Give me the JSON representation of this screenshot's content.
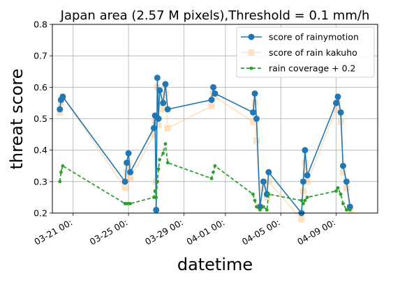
{
  "chart_data": {
    "type": "line",
    "title": "Japan area (2.57 M pixels),Threshold = 0.1 mm/h",
    "xlabel": "datetime",
    "ylabel": "threat score",
    "ylim": [
      0.2,
      0.8
    ],
    "yticks": [
      "0.2",
      "0.3",
      "0.4",
      "0.5",
      "0.6",
      "0.7",
      "0.8"
    ],
    "xlim": [
      "2020-03-19T12:00",
      "2020-04-12T00:00"
    ],
    "xticks": [
      {
        "date": "2020-03-21",
        "label": "03-21 00:"
      },
      {
        "date": "2020-03-25",
        "label": "03-25 00:"
      },
      {
        "date": "2020-03-29",
        "label": "03-29 00:"
      },
      {
        "date": "2020-04-01",
        "label": "04-01 00:"
      },
      {
        "date": "2020-04-05",
        "label": "04-05 00:"
      },
      {
        "date": "2020-04-09",
        "label": "04-09 00:"
      }
    ],
    "grid": true,
    "legend_position": "top-right",
    "series": [
      {
        "name": "score of rainymotion",
        "color": "#1f77b4",
        "style": "solid-circle",
        "points": [
          [
            "2020-03-20T01:00",
            0.53
          ],
          [
            "2020-03-20T03:00",
            0.56
          ],
          [
            "2020-03-20T06:00",
            0.57
          ],
          [
            "2020-03-24T18:00",
            0.3
          ],
          [
            "2020-03-24T21:00",
            0.36
          ],
          [
            "2020-03-25T00:00",
            0.39
          ],
          [
            "2020-03-25T03:00",
            0.33
          ],
          [
            "2020-03-26T20:00",
            0.47
          ],
          [
            "2020-03-26T22:00",
            0.51
          ],
          [
            "2020-03-27T00:00",
            0.21
          ],
          [
            "2020-03-27T02:00",
            0.63
          ],
          [
            "2020-03-27T04:00",
            0.5
          ],
          [
            "2020-03-27T06:00",
            0.59
          ],
          [
            "2020-03-27T12:00",
            0.55
          ],
          [
            "2020-03-27T16:00",
            0.61
          ],
          [
            "2020-03-27T20:00",
            0.53
          ],
          [
            "2020-03-31T00:00",
            0.56
          ],
          [
            "2020-03-31T03:00",
            0.6
          ],
          [
            "2020-03-31T06:00",
            0.58
          ],
          [
            "2020-04-03T00:00",
            0.52
          ],
          [
            "2020-04-03T03:00",
            0.58
          ],
          [
            "2020-04-03T06:00",
            0.5
          ],
          [
            "2020-04-03T12:00",
            0.22
          ],
          [
            "2020-04-03T18:00",
            0.3
          ],
          [
            "2020-04-04T00:00",
            0.26
          ],
          [
            "2020-04-04T03:00",
            0.33
          ],
          [
            "2020-04-06T12:00",
            0.2
          ],
          [
            "2020-04-06T15:00",
            0.3
          ],
          [
            "2020-04-06T18:00",
            0.4
          ],
          [
            "2020-04-06T22:00",
            0.32
          ],
          [
            "2020-04-09T00:00",
            0.55
          ],
          [
            "2020-04-09T03:00",
            0.57
          ],
          [
            "2020-04-09T08:00",
            0.52
          ],
          [
            "2020-04-09T12:00",
            0.35
          ],
          [
            "2020-04-09T18:00",
            0.3
          ],
          [
            "2020-04-10T00:00",
            0.22
          ]
        ]
      },
      {
        "name": "score of rain kakuho",
        "color": "#ffbb78",
        "style": "light-square",
        "points": [
          [
            "2020-03-20T01:00",
            0.52
          ],
          [
            "2020-03-20T03:00",
            0.55
          ],
          [
            "2020-03-20T06:00",
            0.57
          ],
          [
            "2020-03-24T18:00",
            0.28
          ],
          [
            "2020-03-24T21:00",
            0.33
          ],
          [
            "2020-03-25T00:00",
            0.36
          ],
          [
            "2020-03-25T03:00",
            0.31
          ],
          [
            "2020-03-26T20:00",
            0.45
          ],
          [
            "2020-03-26T22:00",
            0.49
          ],
          [
            "2020-03-27T00:00",
            0.3
          ],
          [
            "2020-03-27T02:00",
            0.6
          ],
          [
            "2020-03-27T04:00",
            0.48
          ],
          [
            "2020-03-27T06:00",
            0.57
          ],
          [
            "2020-03-27T12:00",
            0.53
          ],
          [
            "2020-03-27T16:00",
            0.58
          ],
          [
            "2020-03-27T20:00",
            0.47
          ],
          [
            "2020-03-31T00:00",
            0.54
          ],
          [
            "2020-03-31T03:00",
            0.58
          ],
          [
            "2020-03-31T06:00",
            0.57
          ],
          [
            "2020-04-03T00:00",
            0.49
          ],
          [
            "2020-04-03T03:00",
            0.55
          ],
          [
            "2020-04-03T06:00",
            0.43
          ],
          [
            "2020-04-03T12:00",
            0.22
          ],
          [
            "2020-04-03T18:00",
            0.28
          ],
          [
            "2020-04-04T00:00",
            0.25
          ],
          [
            "2020-04-04T03:00",
            0.3
          ],
          [
            "2020-04-06T12:00",
            0.18
          ],
          [
            "2020-04-06T15:00",
            0.27
          ],
          [
            "2020-04-06T18:00",
            0.36
          ],
          [
            "2020-04-06T22:00",
            0.3
          ],
          [
            "2020-04-09T00:00",
            0.53
          ],
          [
            "2020-04-09T03:00",
            0.55
          ],
          [
            "2020-04-09T08:00",
            0.49
          ],
          [
            "2020-04-09T12:00",
            0.33
          ],
          [
            "2020-04-09T18:00",
            0.28
          ],
          [
            "2020-04-10T00:00",
            0.21
          ]
        ]
      },
      {
        "name": "rain coverage + 0.2",
        "color": "#2ca02c",
        "style": "dashed-dot",
        "points": [
          [
            "2020-03-20T01:00",
            0.3
          ],
          [
            "2020-03-20T03:00",
            0.33
          ],
          [
            "2020-03-20T06:00",
            0.35
          ],
          [
            "2020-03-24T18:00",
            0.23
          ],
          [
            "2020-03-24T21:00",
            0.23
          ],
          [
            "2020-03-25T00:00",
            0.23
          ],
          [
            "2020-03-25T03:00",
            0.23
          ],
          [
            "2020-03-26T20:00",
            0.25
          ],
          [
            "2020-03-26T22:00",
            0.27
          ],
          [
            "2020-03-27T00:00",
            0.25
          ],
          [
            "2020-03-27T02:00",
            0.3
          ],
          [
            "2020-03-27T04:00",
            0.34
          ],
          [
            "2020-03-27T06:00",
            0.37
          ],
          [
            "2020-03-27T12:00",
            0.39
          ],
          [
            "2020-03-27T16:00",
            0.42
          ],
          [
            "2020-03-27T20:00",
            0.36
          ],
          [
            "2020-03-31T00:00",
            0.31
          ],
          [
            "2020-03-31T03:00",
            0.33
          ],
          [
            "2020-03-31T06:00",
            0.35
          ],
          [
            "2020-04-03T00:00",
            0.26
          ],
          [
            "2020-04-03T03:00",
            0.24
          ],
          [
            "2020-04-03T06:00",
            0.22
          ],
          [
            "2020-04-03T12:00",
            0.21
          ],
          [
            "2020-04-03T18:00",
            0.22
          ],
          [
            "2020-04-04T00:00",
            0.21
          ],
          [
            "2020-04-04T03:00",
            0.26
          ],
          [
            "2020-04-06T12:00",
            0.24
          ],
          [
            "2020-04-06T15:00",
            0.23
          ],
          [
            "2020-04-06T18:00",
            0.24
          ],
          [
            "2020-04-06T22:00",
            0.25
          ],
          [
            "2020-04-09T00:00",
            0.27
          ],
          [
            "2020-04-09T03:00",
            0.28
          ],
          [
            "2020-04-09T08:00",
            0.26
          ],
          [
            "2020-04-09T12:00",
            0.23
          ],
          [
            "2020-04-09T18:00",
            0.21
          ],
          [
            "2020-04-10T00:00",
            0.21
          ]
        ]
      }
    ]
  }
}
